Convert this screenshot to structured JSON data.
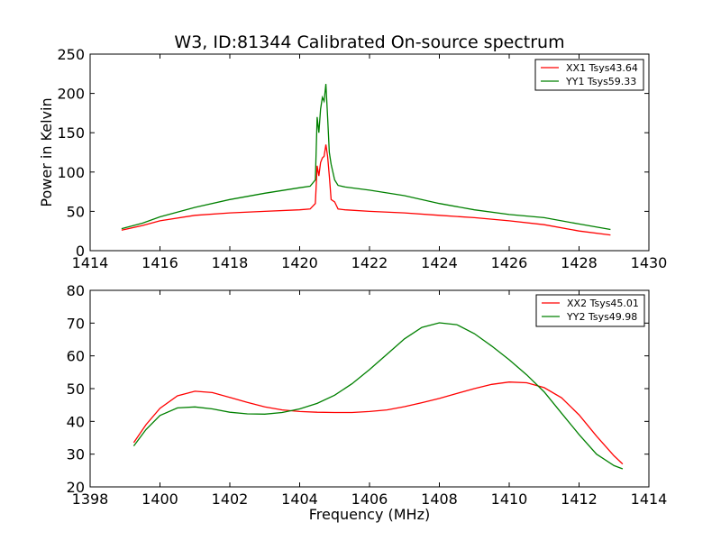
{
  "title": "W3, ID:81344 Calibrated On-source spectrum",
  "chart_data": [
    {
      "type": "line",
      "ylabel": "Power in Kelvin",
      "xlabel": "",
      "xlim": [
        1414,
        1430
      ],
      "ylim": [
        0,
        250
      ],
      "xticks": [
        1414,
        1416,
        1418,
        1420,
        1422,
        1424,
        1426,
        1428,
        1430
      ],
      "yticks": [
        0,
        50,
        100,
        150,
        200,
        250
      ],
      "legend_position": "top-right",
      "grid": false,
      "series": [
        {
          "name": "XX1 Tsys43.64",
          "color": "#ff0000",
          "x": [
            1414.9,
            1415.5,
            1416,
            1417,
            1418,
            1419,
            1420,
            1420.3,
            1420.45,
            1420.5,
            1420.55,
            1420.6,
            1420.65,
            1420.7,
            1420.75,
            1420.8,
            1420.85,
            1420.9,
            1421.0,
            1421.1,
            1421.3,
            1422,
            1423,
            1424,
            1425,
            1426,
            1427,
            1428,
            1428.9
          ],
          "y": [
            26,
            32,
            38,
            45,
            48,
            50,
            52,
            53,
            60,
            108,
            95,
            112,
            118,
            120,
            135,
            120,
            95,
            65,
            62,
            53,
            52,
            50,
            48,
            45,
            42,
            38,
            33,
            25,
            20
          ]
        },
        {
          "name": "YY1 Tsys59.33",
          "color": "#008000",
          "x": [
            1414.9,
            1415.5,
            1416,
            1417,
            1418,
            1419,
            1420,
            1420.3,
            1420.45,
            1420.5,
            1420.55,
            1420.6,
            1420.65,
            1420.7,
            1420.75,
            1420.8,
            1420.85,
            1420.9,
            1421.0,
            1421.1,
            1421.3,
            1422,
            1423,
            1424,
            1425,
            1426,
            1427,
            1428,
            1428.9
          ],
          "y": [
            28,
            35,
            43,
            55,
            65,
            73,
            80,
            82,
            90,
            170,
            150,
            180,
            195,
            190,
            212,
            170,
            125,
            110,
            90,
            83,
            81,
            77,
            70,
            60,
            52,
            46,
            42,
            34,
            27
          ]
        }
      ]
    },
    {
      "type": "line",
      "ylabel": "",
      "xlabel": "Frequency (MHz)",
      "xlim": [
        1398,
        1414
      ],
      "ylim": [
        20,
        80
      ],
      "xticks": [
        1398,
        1400,
        1402,
        1404,
        1406,
        1408,
        1410,
        1412,
        1414
      ],
      "yticks": [
        20,
        30,
        40,
        50,
        60,
        70,
        80
      ],
      "legend_position": "top-right",
      "grid": false,
      "series": [
        {
          "name": "XX2 Tsys45.01",
          "color": "#ff0000",
          "x": [
            1399.25,
            1399.6,
            1400,
            1400.5,
            1401,
            1401.5,
            1402,
            1402.5,
            1403,
            1403.5,
            1404,
            1404.5,
            1405,
            1405.5,
            1406,
            1406.5,
            1407,
            1407.5,
            1408,
            1408.5,
            1409,
            1409.5,
            1410,
            1410.5,
            1411,
            1411.5,
            1412,
            1412.5,
            1413,
            1413.25
          ],
          "y": [
            33.5,
            39,
            44,
            47.8,
            49.2,
            48.8,
            47.3,
            45.8,
            44.4,
            43.5,
            43,
            42.8,
            42.7,
            42.7,
            43,
            43.5,
            44.5,
            45.7,
            47,
            48.5,
            50,
            51.3,
            52,
            51.8,
            50.3,
            47.2,
            42,
            35.5,
            29.5,
            27
          ]
        },
        {
          "name": "YY2 Tsys49.98",
          "color": "#008000",
          "x": [
            1399.25,
            1399.6,
            1400,
            1400.5,
            1401,
            1401.5,
            1402,
            1402.5,
            1403,
            1403.5,
            1404,
            1404.5,
            1405,
            1405.5,
            1406,
            1406.5,
            1407,
            1407.5,
            1408,
            1408.5,
            1409,
            1409.5,
            1410,
            1410.5,
            1411,
            1411.5,
            1412,
            1412.5,
            1413,
            1413.25
          ],
          "y": [
            32.5,
            37.5,
            41.8,
            44.1,
            44.4,
            43.8,
            42.8,
            42.3,
            42.2,
            42.7,
            43.8,
            45.5,
            48,
            51.5,
            55.8,
            60.5,
            65.2,
            68.7,
            70.1,
            69.5,
            66.8,
            63,
            58.8,
            54.2,
            49,
            42.5,
            36,
            30,
            26.5,
            25.5
          ]
        }
      ]
    }
  ]
}
